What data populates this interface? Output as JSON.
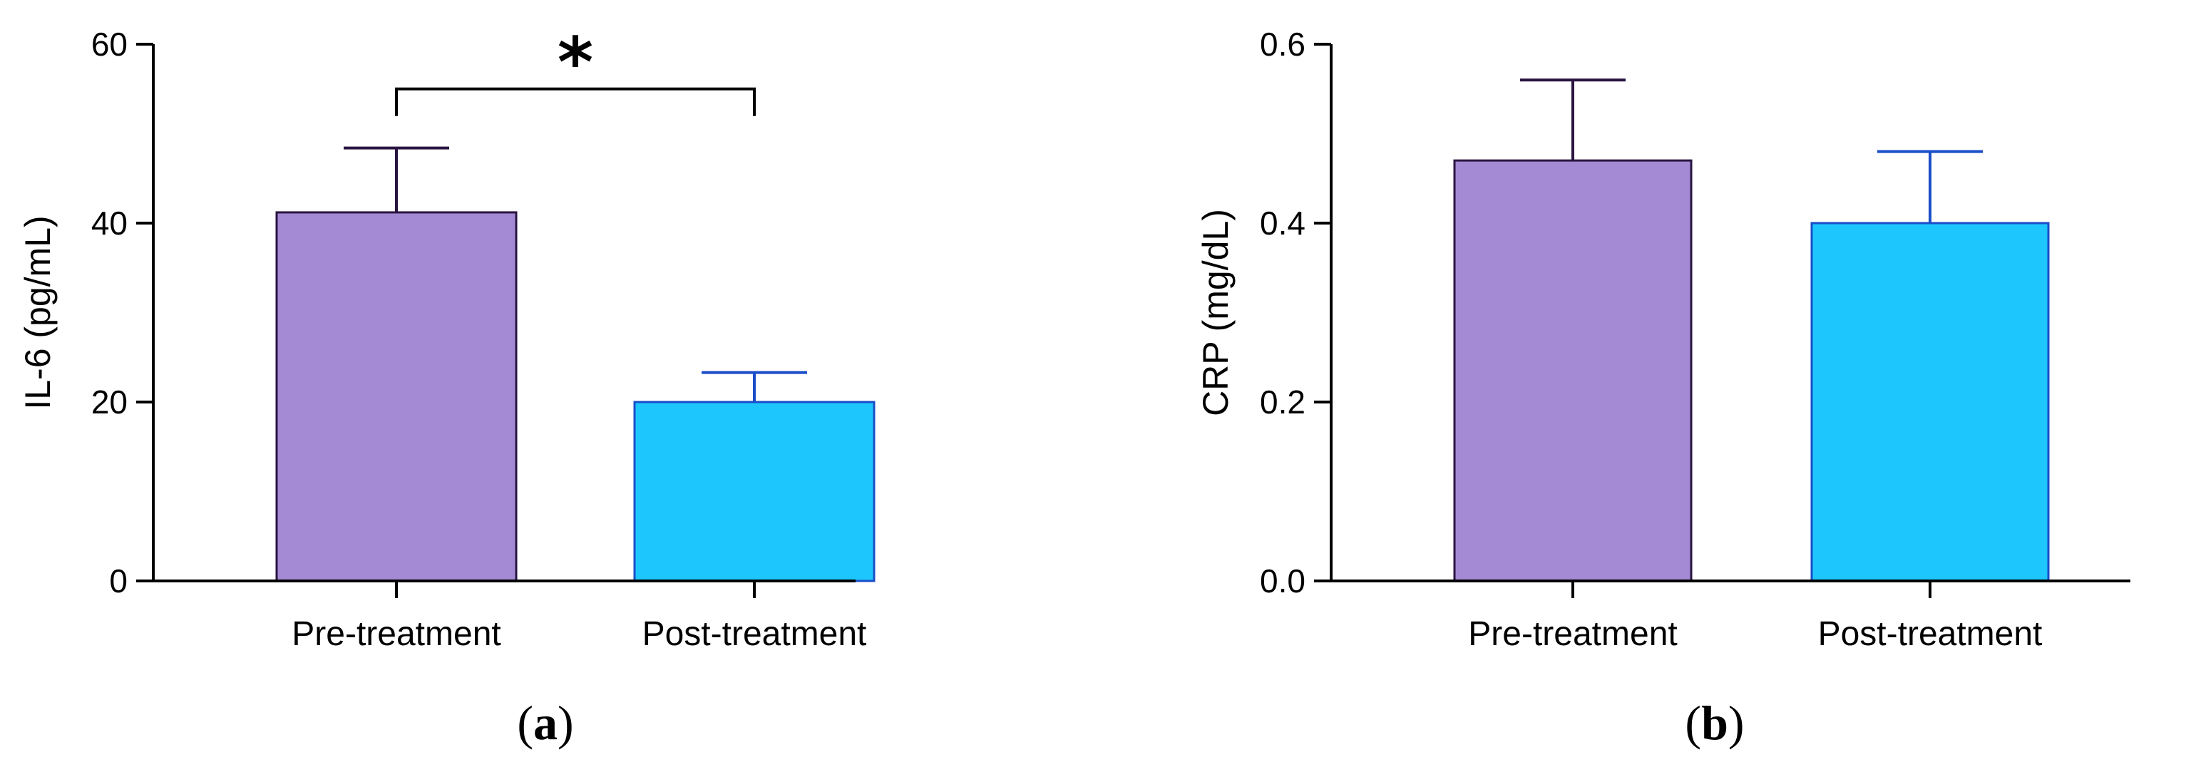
{
  "chart_data": [
    {
      "panel": "a",
      "type": "bar",
      "ylabel": "IL-6 (pg/mL)",
      "xlabel": "",
      "categories": [
        "Pre-treatment",
        "Post-treatment"
      ],
      "values": [
        41.2,
        20.0
      ],
      "errors": [
        7.2,
        3.3
      ],
      "ylim": [
        0,
        60
      ],
      "yticks": [
        0,
        20,
        40,
        60
      ],
      "ytick_labels": [
        "0",
        "20",
        "40",
        "60"
      ],
      "bar_colors": [
        "#a48ad4",
        "#1ec6fe"
      ],
      "edge_colors": [
        "#2a1440",
        "#1a4ec8"
      ],
      "significance": {
        "from": 0,
        "to": 1,
        "label": "*",
        "y": 55
      }
    },
    {
      "panel": "b",
      "type": "bar",
      "ylabel": "CRP (mg/dL)",
      "xlabel": "",
      "categories": [
        "Pre-treatment",
        "Post-treatment"
      ],
      "values": [
        0.47,
        0.4
      ],
      "errors": [
        0.09,
        0.08
      ],
      "ylim": [
        0,
        0.6
      ],
      "yticks": [
        0,
        0.2,
        0.4,
        0.6
      ],
      "ytick_labels": [
        "0.0",
        "0.2",
        "0.4",
        "0.6"
      ],
      "bar_colors": [
        "#a48ad4",
        "#1ec6fe"
      ],
      "edge_colors": [
        "#2a1440",
        "#1a4ec8"
      ]
    }
  ],
  "panel_labels": [
    {
      "open": "(",
      "letter": "a",
      "close": ")"
    },
    {
      "open": "(",
      "letter": "b",
      "close": ")"
    }
  ]
}
